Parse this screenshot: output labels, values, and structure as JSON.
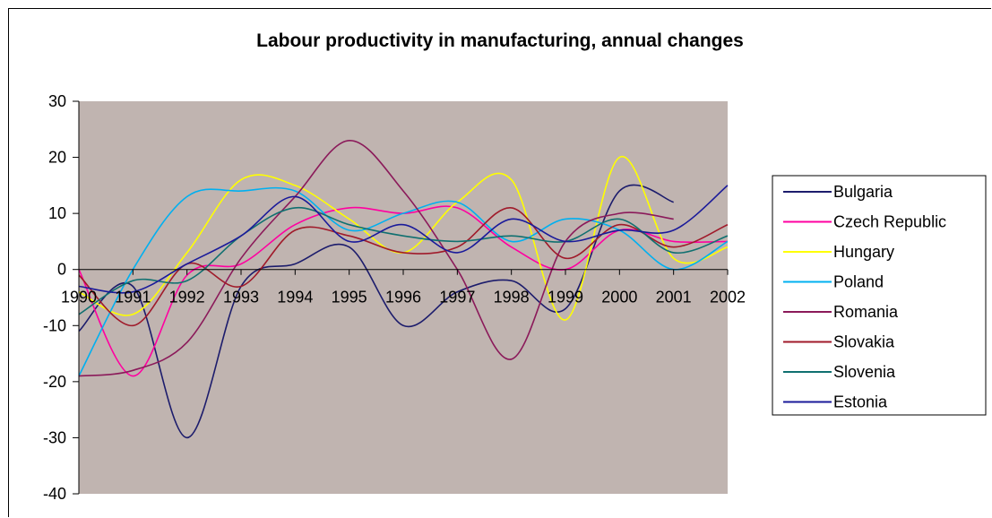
{
  "chart_data": {
    "type": "line",
    "title": "Labour productivity in manufacturing, annual changes",
    "xlabel": "",
    "ylabel": "",
    "x": [
      "1990",
      "1991",
      "1992",
      "1993",
      "1994",
      "1995",
      "1996",
      "1997",
      "1998",
      "1999",
      "2000",
      "2001",
      "2002"
    ],
    "ylim": [
      -40,
      30
    ],
    "yticks": [
      30,
      20,
      10,
      0,
      -10,
      -20,
      -30,
      -40
    ],
    "grid": false,
    "plot_background": "#c0b4b0",
    "legend_position": "right",
    "series": [
      {
        "name": "Bulgaria",
        "color": "#1c1c6c",
        "values": [
          -11,
          -3,
          -30,
          -3,
          1,
          4,
          -10,
          -4,
          -2,
          -7,
          14,
          12,
          null
        ]
      },
      {
        "name": "Czech Republic",
        "color": "#ff00a0",
        "values": [
          0,
          -19,
          -1,
          1,
          8,
          11,
          10,
          11,
          4,
          0,
          7,
          5,
          5
        ]
      },
      {
        "name": "Hungary",
        "color": "#ffff00",
        "values": [
          -4,
          -8,
          3,
          16,
          15,
          9,
          3,
          12,
          16,
          -9,
          20,
          2,
          4
        ]
      },
      {
        "name": "Poland",
        "color": "#00b0f0",
        "values": [
          -19,
          0,
          13,
          14,
          14,
          7,
          10,
          12,
          5,
          9,
          7,
          0,
          5
        ]
      },
      {
        "name": "Romania",
        "color": "#8b1a5a",
        "values": [
          -19,
          -18,
          -13,
          2,
          13,
          23,
          14,
          0,
          -16,
          5,
          10,
          9,
          null
        ]
      },
      {
        "name": "Slovakia",
        "color": "#a01a2a",
        "values": [
          -1,
          -10,
          1,
          -3,
          7,
          6,
          3,
          4,
          11,
          2,
          8,
          4,
          8
        ]
      },
      {
        "name": "Slovenia",
        "color": "#107070",
        "values": [
          -8,
          -2,
          -2,
          6,
          11,
          8,
          6,
          5,
          6,
          5,
          9,
          3,
          6
        ]
      },
      {
        "name": "Estonia",
        "color": "#1a1a9a",
        "values": [
          -3,
          -4,
          1,
          6,
          13,
          5,
          8,
          3,
          9,
          5,
          7,
          7,
          15
        ]
      }
    ]
  }
}
